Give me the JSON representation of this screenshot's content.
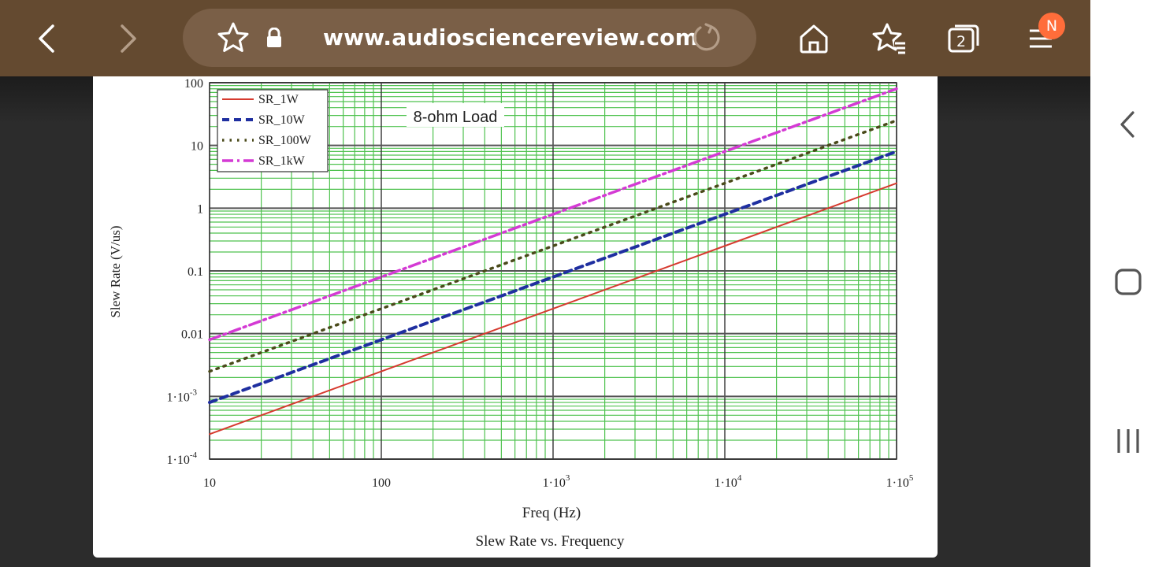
{
  "browser": {
    "url": "www.audiosciencereview.com",
    "tab_count": "2",
    "profile_initial": "N",
    "toolbar_color": "#644a30",
    "urlbar_color": "#7a5f47",
    "icons": {
      "back": "chevron-left-icon",
      "forward": "chevron-right-icon",
      "bookmark": "star-icon",
      "secure": "lock-icon",
      "reload": "reload-icon",
      "home": "home-icon",
      "bookmarks": "bookmarks-icon",
      "tabs": "tabs-icon",
      "menu": "menu-icon"
    }
  },
  "system_nav": {
    "icons": [
      "back-icon",
      "home-square-icon",
      "recents-icon"
    ]
  },
  "figure": {
    "caption": "Slew Rate vs. Frequency"
  },
  "chart_data": {
    "type": "line",
    "title": "",
    "annotation": "8-ohm Load",
    "xlabel": "Freq (Hz)",
    "ylabel": "Slew Rate (V/us)",
    "xscale": "log",
    "yscale": "log",
    "xlim": [
      10,
      100000
    ],
    "ylim": [
      0.0001,
      100
    ],
    "xticks": [
      {
        "value": 10,
        "label": "10"
      },
      {
        "value": 100,
        "label": "100"
      },
      {
        "value": 1000,
        "label": "1·10",
        "exp": "3"
      },
      {
        "value": 10000,
        "label": "1·10",
        "exp": "4"
      },
      {
        "value": 100000,
        "label": "1·10",
        "exp": "5"
      }
    ],
    "yticks": [
      {
        "value": 100,
        "label": "100"
      },
      {
        "value": 10,
        "label": "10"
      },
      {
        "value": 1,
        "label": "1"
      },
      {
        "value": 0.1,
        "label": "0.1"
      },
      {
        "value": 0.01,
        "label": "0.01"
      },
      {
        "value": 0.001,
        "label": "1·10",
        "exp": "-3"
      },
      {
        "value": 0.0001,
        "label": "1·10",
        "exp": "-4"
      }
    ],
    "grid": true,
    "legend": "top-left",
    "series": [
      {
        "name": "SR_1W",
        "color": "#d63a2f",
        "dash": "solid",
        "x": [
          10,
          100000
        ],
        "y": [
          0.00025,
          2.5
        ]
      },
      {
        "name": "SR_10W",
        "color": "#1f2fa0",
        "dash": "dashed",
        "x": [
          10,
          100000
        ],
        "y": [
          0.0008,
          8
        ]
      },
      {
        "name": "SR_100W",
        "color": "#4a4a1a",
        "dash": "dotted",
        "x": [
          10,
          100000
        ],
        "y": [
          0.0025,
          25
        ]
      },
      {
        "name": "SR_1kW",
        "color": "#d43ad4",
        "dash": "dashdot",
        "x": [
          10,
          100000
        ],
        "y": [
          0.008,
          80
        ]
      }
    ]
  }
}
